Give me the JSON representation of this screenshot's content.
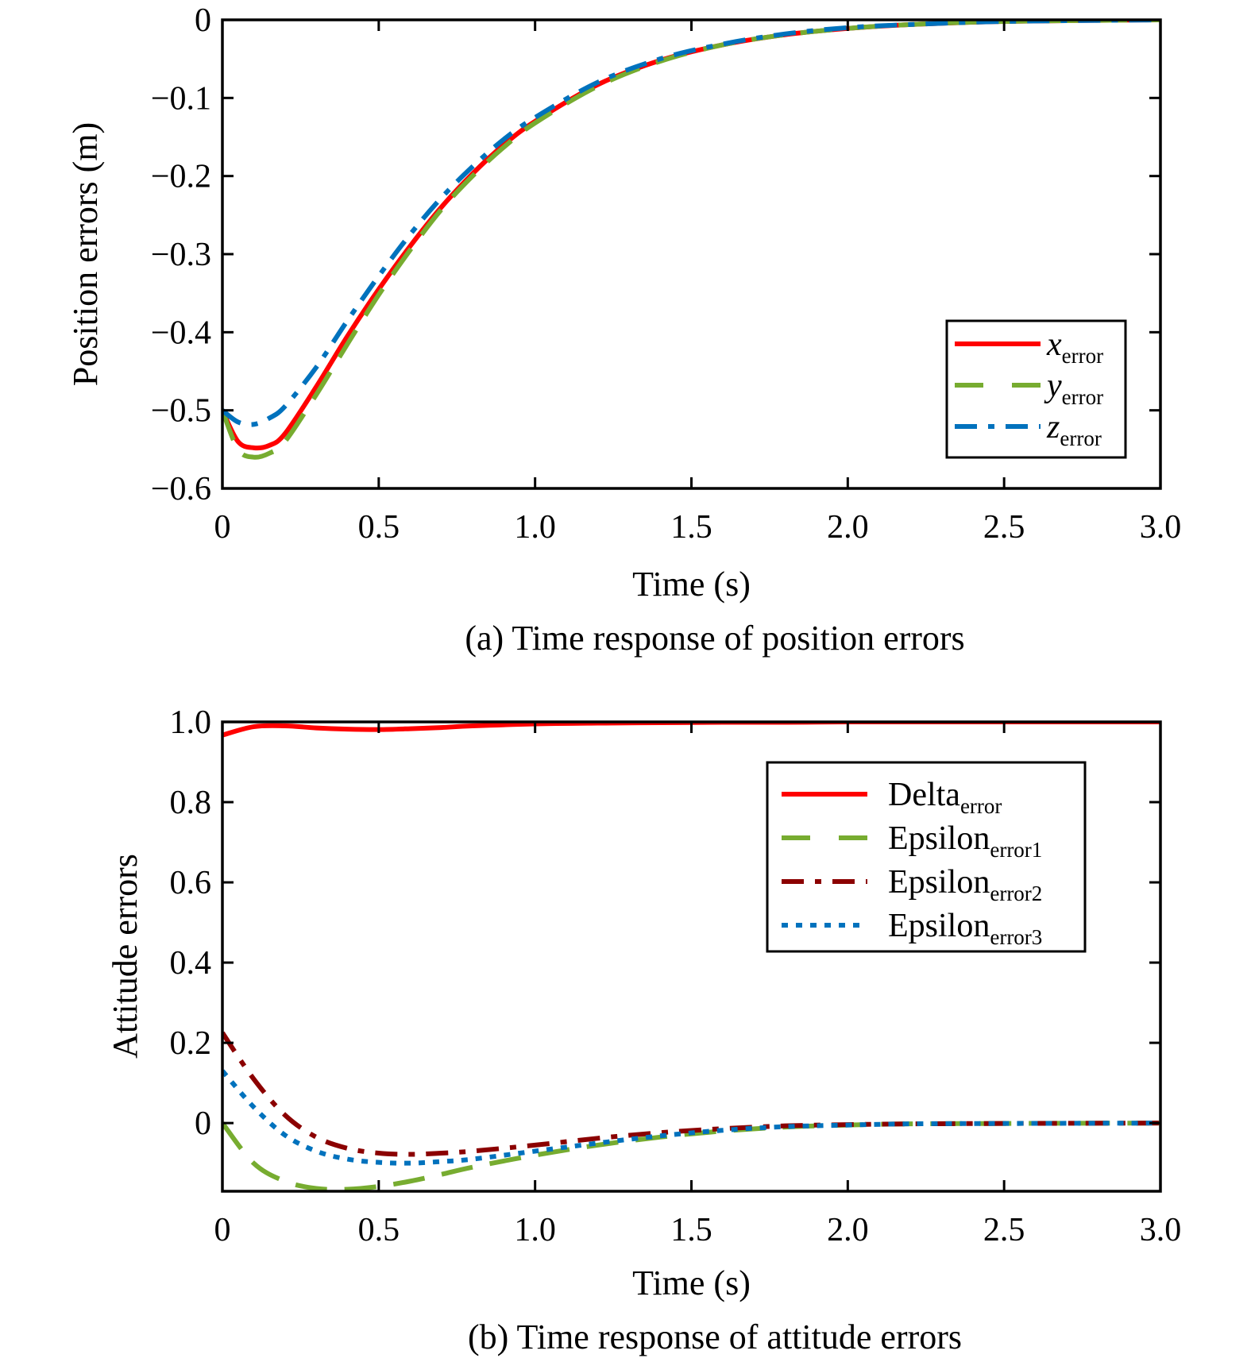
{
  "chart_data": [
    {
      "type": "line",
      "caption": "(a) Time response of position errors",
      "xlabel": "Time (s)",
      "ylabel": "Position errors (m)",
      "xlim": [
        0,
        3.0
      ],
      "ylim": [
        -0.6,
        0
      ],
      "xticks": [
        0,
        0.5,
        1.0,
        1.5,
        2.0,
        2.5,
        3.0
      ],
      "xtick_labels": [
        "0",
        "0.5",
        "1.0",
        "1.5",
        "2.0",
        "2.5",
        "3.0"
      ],
      "yticks": [
        0,
        -0.1,
        -0.2,
        -0.3,
        -0.4,
        -0.5,
        -0.6
      ],
      "ytick_labels": [
        "0",
        "−0.1",
        "−0.2",
        "−0.3",
        "−0.4",
        "−0.5",
        "−0.6"
      ],
      "legend_position": "lower-right",
      "x": [
        0,
        0.05,
        0.1,
        0.15,
        0.2,
        0.3,
        0.4,
        0.5,
        0.6,
        0.7,
        0.8,
        0.9,
        1.0,
        1.2,
        1.4,
        1.6,
        1.8,
        2.0,
        2.2,
        2.5,
        3.0
      ],
      "series": [
        {
          "name": "x",
          "sub": "error",
          "color": "#ff0000",
          "style": "solid",
          "values": [
            -0.5,
            -0.54,
            -0.548,
            -0.545,
            -0.53,
            -0.47,
            -0.405,
            -0.345,
            -0.29,
            -0.24,
            -0.197,
            -0.16,
            -0.13,
            -0.083,
            -0.052,
            -0.032,
            -0.019,
            -0.011,
            -0.006,
            -0.002,
            0
          ]
        },
        {
          "name": "y",
          "sub": "error",
          "color": "#77ac30",
          "style": "dashed",
          "values": [
            -0.5,
            -0.55,
            -0.56,
            -0.555,
            -0.54,
            -0.48,
            -0.415,
            -0.352,
            -0.295,
            -0.243,
            -0.2,
            -0.163,
            -0.132,
            -0.085,
            -0.053,
            -0.032,
            -0.019,
            -0.011,
            -0.006,
            -0.002,
            0
          ]
        },
        {
          "name": "z",
          "sub": "error",
          "color": "#0072bd",
          "style": "dashdot",
          "values": [
            -0.5,
            -0.515,
            -0.518,
            -0.51,
            -0.495,
            -0.445,
            -0.385,
            -0.328,
            -0.275,
            -0.228,
            -0.188,
            -0.153,
            -0.125,
            -0.08,
            -0.05,
            -0.031,
            -0.018,
            -0.01,
            -0.006,
            -0.002,
            0
          ]
        }
      ]
    },
    {
      "type": "line",
      "caption": "(b) Time response of attitude errors",
      "xlabel": "Time (s)",
      "ylabel": "Attitude errors",
      "xlim": [
        0,
        3.0
      ],
      "ylim": [
        -0.17,
        1.0
      ],
      "xticks": [
        0,
        0.5,
        1.0,
        1.5,
        2.0,
        2.5,
        3.0
      ],
      "xtick_labels": [
        "0",
        "0.5",
        "1.0",
        "1.5",
        "2.0",
        "2.5",
        "3.0"
      ],
      "yticks": [
        1.0,
        0.8,
        0.6,
        0.4,
        0.2,
        0
      ],
      "ytick_labels": [
        "1.0",
        "0.8",
        "0.6",
        "0.4",
        "0.2",
        "0"
      ],
      "legend_position": "upper-right",
      "x": [
        0,
        0.1,
        0.2,
        0.3,
        0.4,
        0.5,
        0.6,
        0.7,
        0.8,
        1.0,
        1.2,
        1.4,
        1.6,
        1.8,
        2.0,
        2.2,
        2.5,
        3.0
      ],
      "series": [
        {
          "name": "Delta",
          "sub": "error",
          "color": "#ff0000",
          "style": "solid",
          "values": [
            0.967,
            0.988,
            0.99,
            0.985,
            0.982,
            0.981,
            0.983,
            0.986,
            0.99,
            0.995,
            0.997,
            0.998,
            0.999,
            0.999,
            1.0,
            1.0,
            1.0,
            1.0
          ]
        },
        {
          "name": "Epsilon",
          "sub": "error1",
          "color": "#77ac30",
          "style": "dashed",
          "values": [
            0.0,
            -0.1,
            -0.145,
            -0.163,
            -0.165,
            -0.158,
            -0.145,
            -0.128,
            -0.11,
            -0.08,
            -0.055,
            -0.035,
            -0.02,
            -0.01,
            -0.005,
            -0.002,
            -0.001,
            0
          ]
        },
        {
          "name": "Epsilon",
          "sub": "error2",
          "color": "#8b0000",
          "style": "dashdot",
          "values": [
            0.225,
            0.11,
            0.02,
            -0.035,
            -0.063,
            -0.075,
            -0.078,
            -0.075,
            -0.07,
            -0.055,
            -0.038,
            -0.024,
            -0.014,
            -0.007,
            -0.004,
            -0.002,
            -0.001,
            0
          ]
        },
        {
          "name": "Epsilon",
          "sub": "error3",
          "color": "#0072bd",
          "style": "dotted",
          "values": [
            0.13,
            0.04,
            -0.03,
            -0.07,
            -0.09,
            -0.098,
            -0.1,
            -0.096,
            -0.09,
            -0.07,
            -0.05,
            -0.032,
            -0.018,
            -0.009,
            -0.005,
            -0.002,
            -0.001,
            0
          ]
        }
      ]
    }
  ]
}
